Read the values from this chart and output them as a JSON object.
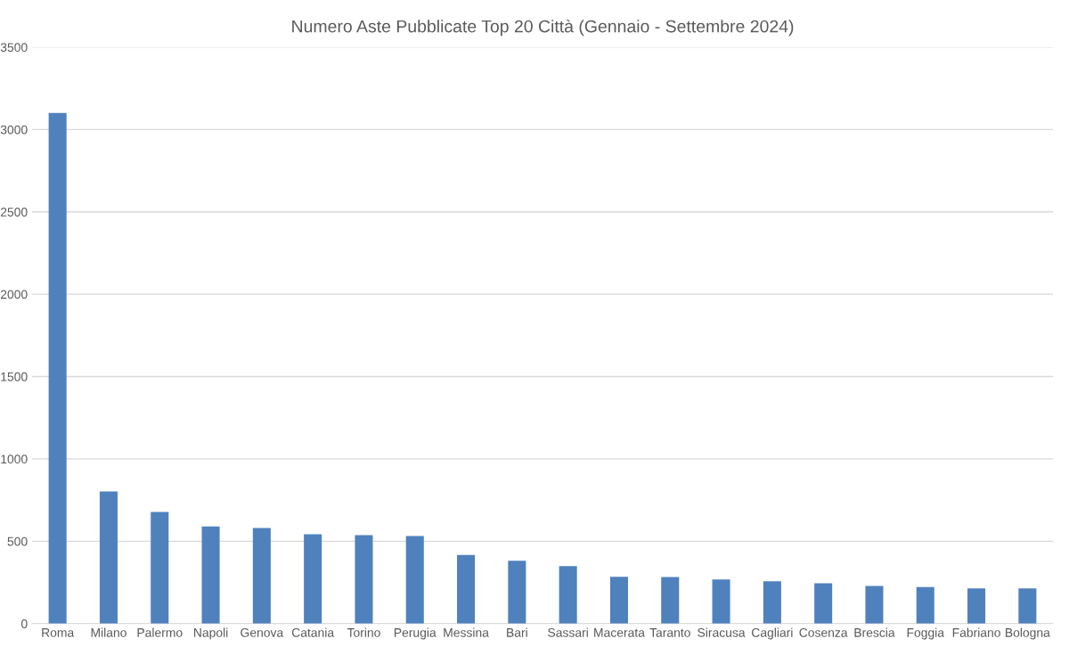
{
  "chart_data": {
    "type": "bar",
    "title": "Numero Aste Pubblicate Top 20 Città (Gennaio - Settembre 2024)",
    "categories": [
      "Roma",
      "Milano",
      "Palermo",
      "Napoli",
      "Genova",
      "Catania",
      "Torino",
      "Perugia",
      "Messina",
      "Bari",
      "Sassari",
      "Macerata",
      "Taranto",
      "Siracusa",
      "Cagliari",
      "Cosenza",
      "Brescia",
      "Foggia",
      "Fabriano",
      "Bologna"
    ],
    "values": [
      3100,
      802,
      677,
      589,
      580,
      542,
      537,
      532,
      417,
      381,
      349,
      284,
      282,
      268,
      257,
      245,
      228,
      222,
      214,
      214
    ],
    "color": "#4f81bd",
    "ylim": [
      0,
      3500
    ],
    "yticks": [
      0,
      500,
      1000,
      1500,
      2000,
      2500,
      3000,
      3500
    ],
    "grid": "y"
  }
}
